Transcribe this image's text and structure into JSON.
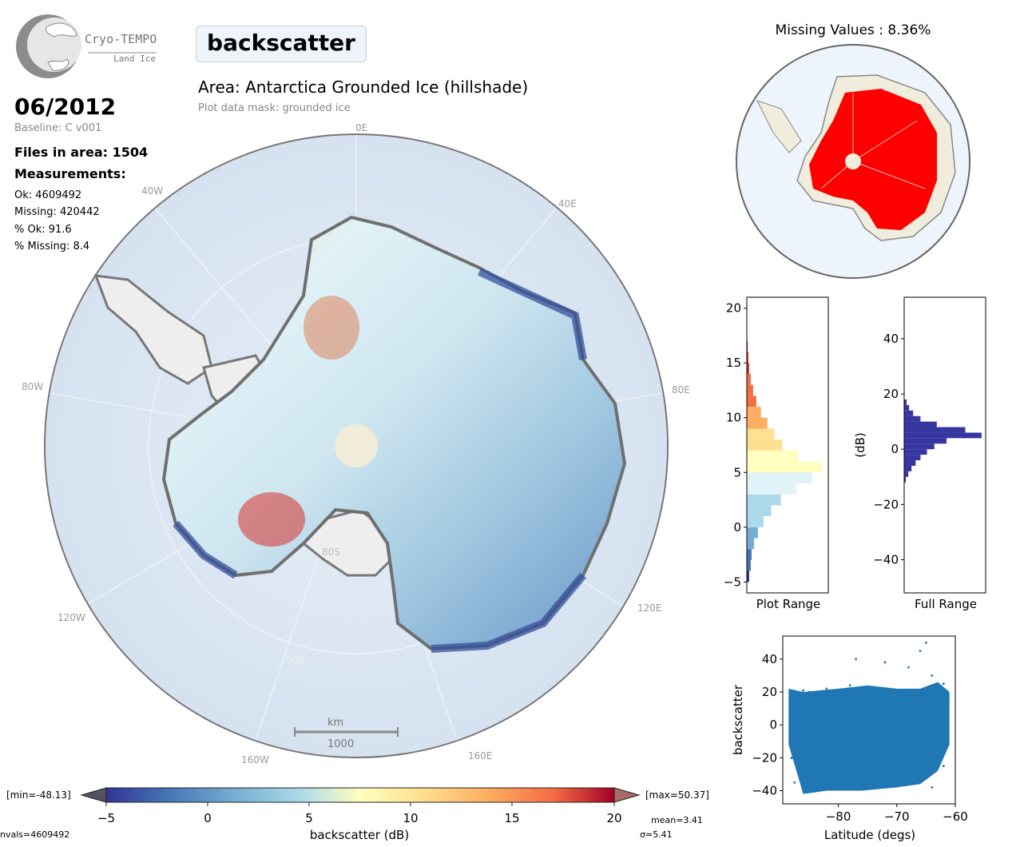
{
  "logo": {
    "name": "Cryo-TEMPO",
    "sub": "Land Ice"
  },
  "header": {
    "parameter": "backscatter",
    "area": "Area: Antarctica Grounded Ice (hillshade)",
    "mask": "Plot data mask: grounded ice"
  },
  "info": {
    "date": "06/2012",
    "baseline": "Baseline: C v001",
    "files": "Files in area: 1504",
    "measurements_title": "Measurements:",
    "ok": "Ok: 4609492",
    "missing": "Missing: 420442",
    "pct_ok": "% Ok: 91.6",
    "pct_missing": "% Missing: 8.4"
  },
  "map": {
    "lon_labels": [
      "0E",
      "40E",
      "80E",
      "120E",
      "160E",
      "160W",
      "120W",
      "80W",
      "40W"
    ],
    "lat_labels": [
      "80S",
      "70S"
    ],
    "scale_unit": "km",
    "scale_value": "1000",
    "colors": {
      "ocean": "#dbe6f2",
      "ice_shelf": "#eeeeee",
      "coast": "#777777",
      "pole_hole": "#f0ecd9"
    }
  },
  "missing_map": {
    "title": "Missing Values : 8.36%",
    "colors": {
      "missing": "#ff0000",
      "present": "#f1eddc",
      "ocean": "#eef4fb"
    }
  },
  "colorbar": {
    "label": "backscatter (dB)",
    "min_label": "[min=-48.13]",
    "max_label": "[max=50.37]",
    "ticks": [
      "−5",
      "0",
      "5",
      "10",
      "15",
      "20"
    ],
    "nvals": "nvals=4609492",
    "mean": "mean=3.41",
    "sigma": "σ=5.41",
    "range": [
      -5,
      20
    ],
    "cmap": "RdYlBu_r"
  },
  "chart_data": [
    {
      "type": "bar",
      "orientation": "horizontal",
      "title": "",
      "xlabel": "Plot Range",
      "ylabel": "",
      "ylim": [
        -6,
        21
      ],
      "yticks": [
        "−5",
        "0",
        "5",
        "10",
        "15",
        "20"
      ],
      "bins": [
        -5,
        -4,
        -3,
        -2,
        -1,
        0,
        1,
        2,
        3,
        4,
        5,
        6,
        7,
        8,
        9,
        10,
        11,
        12,
        13,
        14,
        15,
        16
      ],
      "counts": [
        3,
        5,
        6,
        9,
        14,
        21,
        31,
        43,
        63,
        83,
        95,
        65,
        45,
        35,
        26,
        18,
        12,
        8,
        5,
        3,
        2,
        1
      ],
      "colored_by_value": true
    },
    {
      "type": "bar",
      "orientation": "horizontal",
      "title": "",
      "xlabel": "Full Range",
      "ylabel": "(dB)",
      "ylim": [
        -52,
        55
      ],
      "yticks": [
        "40",
        "20",
        "0",
        "−20",
        "−40"
      ],
      "bins": [
        -12,
        -10,
        -8,
        -6,
        -4,
        -2,
        0,
        2,
        4,
        6,
        8,
        10,
        12,
        14,
        16
      ],
      "counts": [
        2,
        5,
        9,
        14,
        20,
        28,
        37,
        52,
        95,
        75,
        40,
        20,
        11,
        6,
        3
      ],
      "color": "#3636a0"
    },
    {
      "type": "scatter",
      "title": "",
      "xlabel": "Latitude (degs)",
      "ylabel": "backscatter",
      "xlim": [
        -89.5,
        -60
      ],
      "ylim": [
        -48,
        54
      ],
      "xticks": [
        "−80",
        "−70",
        "−60"
      ],
      "yticks": [
        "40",
        "20",
        "0",
        "−20",
        "−40"
      ],
      "color": "#1f77b4",
      "points": [
        [
          -88,
          5
        ],
        [
          -88,
          -20
        ],
        [
          -87.5,
          -35
        ],
        [
          -86,
          21
        ],
        [
          -86,
          -40
        ],
        [
          -85,
          20
        ],
        [
          -84,
          -38
        ],
        [
          -82,
          22
        ],
        [
          -82,
          -38
        ],
        [
          -80,
          20
        ],
        [
          -80,
          -36
        ],
        [
          -78,
          24
        ],
        [
          -78,
          -38
        ],
        [
          -77,
          40
        ],
        [
          -76,
          18
        ],
        [
          -76,
          -30
        ],
        [
          -74,
          22
        ],
        [
          -74,
          -36
        ],
        [
          -72,
          38
        ],
        [
          -72,
          -32
        ],
        [
          -70,
          20
        ],
        [
          -70,
          -30
        ],
        [
          -68,
          35
        ],
        [
          -68,
          -35
        ],
        [
          -66,
          45
        ],
        [
          -66,
          20
        ],
        [
          -66,
          -32
        ],
        [
          -65,
          50
        ],
        [
          -64,
          30
        ],
        [
          -64,
          -38
        ],
        [
          -62,
          25
        ],
        [
          -62,
          -25
        ],
        [
          -61.5,
          15
        ],
        [
          -61.5,
          -10
        ]
      ]
    }
  ]
}
